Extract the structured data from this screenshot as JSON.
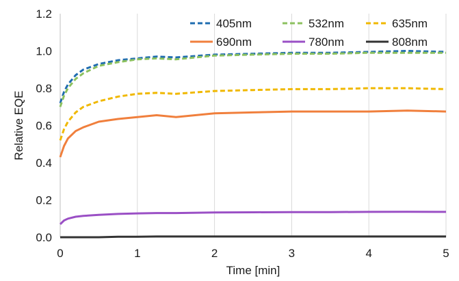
{
  "chart_data": {
    "type": "line",
    "title": "",
    "xlabel": "Time [min]",
    "ylabel": "Relative EQE",
    "xlim": [
      0,
      5
    ],
    "ylim": [
      0,
      1.2
    ],
    "xticks": [
      0,
      1,
      2,
      3,
      4,
      5
    ],
    "xtick_labels": [
      "0",
      "1",
      "2",
      "3",
      "4",
      "5"
    ],
    "yticks": [
      0,
      0.2,
      0.4,
      0.6,
      0.8,
      1.0,
      1.2
    ],
    "ytick_labels": [
      "0.0",
      "0.2",
      "0.4",
      "0.6",
      "0.8",
      "1.0",
      "1.2"
    ],
    "grid": "vertical",
    "legend": "top-right",
    "x": [
      0,
      0.05,
      0.1,
      0.2,
      0.3,
      0.5,
      0.75,
      1.0,
      1.25,
      1.5,
      2.0,
      2.5,
      3.0,
      3.5,
      4.0,
      4.5,
      5.0
    ],
    "series": [
      {
        "name": "405nm",
        "color": "#1f6cb0",
        "style": "dashed",
        "values": [
          0.72,
          0.78,
          0.82,
          0.87,
          0.9,
          0.93,
          0.95,
          0.96,
          0.97,
          0.965,
          0.98,
          0.985,
          0.99,
          0.99,
          0.995,
          1.0,
          0.995
        ]
      },
      {
        "name": "532nm",
        "color": "#8cc15f",
        "style": "dashed",
        "values": [
          0.7,
          0.76,
          0.8,
          0.85,
          0.88,
          0.92,
          0.94,
          0.955,
          0.96,
          0.955,
          0.975,
          0.98,
          0.985,
          0.985,
          0.99,
          0.99,
          0.99
        ]
      },
      {
        "name": "635nm",
        "color": "#f0b800",
        "style": "dashed",
        "values": [
          0.52,
          0.58,
          0.62,
          0.67,
          0.7,
          0.73,
          0.755,
          0.77,
          0.775,
          0.77,
          0.785,
          0.79,
          0.795,
          0.795,
          0.8,
          0.8,
          0.795
        ]
      },
      {
        "name": "690nm",
        "color": "#f07f3c",
        "style": "solid",
        "values": [
          0.43,
          0.49,
          0.53,
          0.57,
          0.59,
          0.62,
          0.635,
          0.645,
          0.655,
          0.645,
          0.665,
          0.67,
          0.675,
          0.675,
          0.675,
          0.68,
          0.675
        ]
      },
      {
        "name": "780nm",
        "color": "#9a4fc5",
        "style": "solid",
        "values": [
          0.07,
          0.09,
          0.1,
          0.11,
          0.115,
          0.12,
          0.125,
          0.128,
          0.13,
          0.13,
          0.133,
          0.134,
          0.135,
          0.135,
          0.136,
          0.137,
          0.136
        ]
      },
      {
        "name": "808nm",
        "color": "#333333",
        "style": "solid",
        "values": [
          0.0,
          0.0,
          0.0,
          0.0,
          0.0,
          0.0,
          0.003,
          0.003,
          0.004,
          0.004,
          0.004,
          0.004,
          0.004,
          0.004,
          0.004,
          0.004,
          0.004
        ]
      }
    ]
  }
}
